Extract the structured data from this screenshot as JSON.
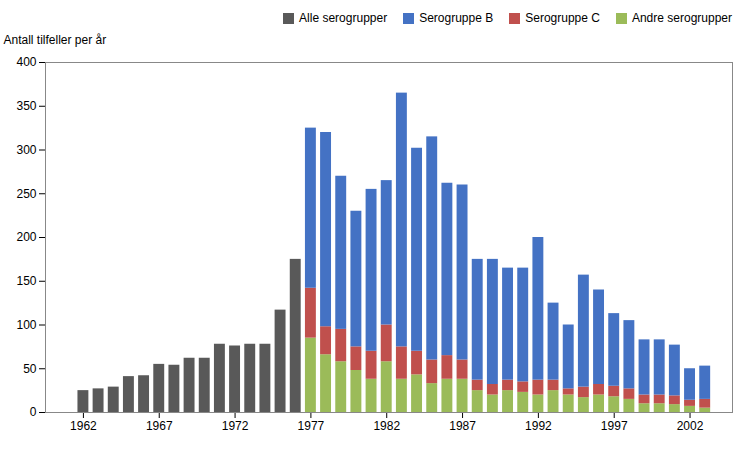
{
  "chart_data": {
    "type": "bar",
    "stacked": true,
    "ylabel": "Antall tilfeller per år",
    "x": [
      1962,
      1963,
      1964,
      1965,
      1966,
      1967,
      1968,
      1969,
      1970,
      1971,
      1972,
      1973,
      1974,
      1975,
      1976,
      1977,
      1978,
      1979,
      1980,
      1981,
      1982,
      1983,
      1984,
      1985,
      1986,
      1987,
      1988,
      1989,
      1990,
      1991,
      1992,
      1993,
      1994,
      1995,
      1996,
      1997,
      1998,
      1999,
      2000,
      2001,
      2002,
      2003
    ],
    "series": [
      {
        "name": "Alle serogrupper",
        "color": "#595959",
        "values": [
          25,
          27,
          29,
          41,
          42,
          55,
          54,
          62,
          62,
          78,
          76,
          78,
          78,
          117,
          175,
          null,
          null,
          null,
          null,
          null,
          null,
          null,
          null,
          null,
          null,
          null,
          null,
          null,
          null,
          null,
          null,
          null,
          null,
          null,
          null,
          null,
          null,
          null,
          null,
          null,
          null,
          null
        ]
      },
      {
        "name": "Serogruppe B",
        "color": "#4472C4",
        "values": [
          null,
          null,
          null,
          null,
          null,
          null,
          null,
          null,
          null,
          null,
          null,
          null,
          null,
          null,
          null,
          183,
          222,
          175,
          155,
          185,
          165,
          290,
          232,
          255,
          197,
          200,
          138,
          143,
          128,
          130,
          163,
          88,
          73,
          128,
          108,
          83,
          78,
          63,
          63,
          58,
          36,
          38
        ]
      },
      {
        "name": "Serogruppe C",
        "color": "#C0504D",
        "values": [
          null,
          null,
          null,
          null,
          null,
          null,
          null,
          null,
          null,
          null,
          null,
          null,
          null,
          null,
          null,
          57,
          32,
          37,
          27,
          32,
          42,
          37,
          27,
          27,
          27,
          22,
          12,
          12,
          12,
          12,
          17,
          12,
          7,
          12,
          12,
          12,
          12,
          10,
          10,
          10,
          7,
          10
        ]
      },
      {
        "name": "Andre serogrupper",
        "color": "#9BBB59",
        "values": [
          null,
          null,
          null,
          null,
          null,
          null,
          null,
          null,
          null,
          null,
          null,
          null,
          null,
          null,
          null,
          85,
          66,
          58,
          48,
          38,
          58,
          38,
          43,
          33,
          38,
          38,
          25,
          20,
          25,
          23,
          20,
          25,
          20,
          17,
          20,
          18,
          15,
          10,
          10,
          9,
          7,
          5
        ]
      }
    ],
    "xlim": [
      1959.5,
      2004.8
    ],
    "xticks": [
      1962,
      1967,
      1972,
      1977,
      1982,
      1987,
      1992,
      1997,
      2002
    ],
    "ylim": [
      0,
      400
    ],
    "yticks": [
      0,
      50,
      100,
      150,
      200,
      250,
      300,
      350,
      400
    ],
    "legend": "upper right",
    "grid": false
  }
}
